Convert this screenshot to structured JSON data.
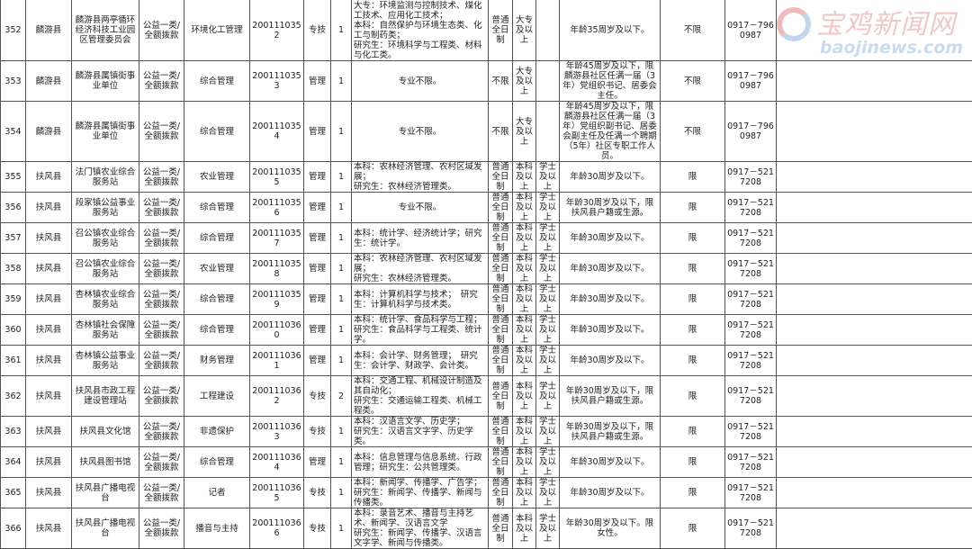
{
  "table": {
    "rows": [
      [
        "352",
        "麟游县",
        "麟游县两亭循环经济科技工业园区管理委员会",
        "公益一类/全额拨款",
        "环境化工管理",
        "2001110352",
        "专技",
        "1",
        "大专：环境监测与控制技术、煤化工技术、应用化工技术；\n本科：自然保护与环境生态类、化工与制药类；\n研究生：环境科学与工程类、材料与化工类。",
        "普通全日制",
        "大专及以上",
        "",
        "年龄35周岁及以下。",
        "不限",
        "0917－7960987",
        ""
      ],
      [
        "353",
        "麟游县",
        "麟游县属镇街事业单位",
        "公益一类/全额拨款",
        "综合管理",
        "2001110353",
        "管理",
        "1",
        "专业不限。",
        "不限",
        "大专及以上",
        "",
        "年龄45周岁及以下，限麟游县社区任满一届（3年）党组织书记、居委会主任。",
        "不限",
        "0917－7960987",
        ""
      ],
      [
        "354",
        "麟游县",
        "麟游县属镇街事业单位",
        "公益一类/全额拨款",
        "综合管理",
        "2001110354",
        "管理",
        "1",
        "专业不限。",
        "不限",
        "大专及以上",
        "",
        "年龄45周岁及以下，限麟游县社区任满一届（3年）党组织副书记、居委会副主任及任满一个聘期（5年）社区专职工作人员。",
        "不限",
        "0917－7960987",
        ""
      ],
      [
        "355",
        "扶风县",
        "法门镇农业综合服务站",
        "公益一类/全额拨款",
        "农业管理",
        "2001110355",
        "管理",
        "1",
        "本科：农林经济管理、农村区域发展；\n研究生：农林经济管理类。",
        "普通全日制",
        "本科及以上",
        "学士及以上",
        "年龄30周岁及以下。",
        "限",
        "0917－5217208",
        ""
      ],
      [
        "356",
        "扶风县",
        "段家镇公益事业服务站",
        "公益一类/全额拨款",
        "综合管理",
        "2001110356",
        "管理",
        "1",
        "专业不限。",
        "普通全日制",
        "本科及以上",
        "学士及以上",
        "年龄30周岁及以下，限扶风县户籍或生源。",
        "限",
        "0917－5217208",
        ""
      ],
      [
        "357",
        "扶风县",
        "召公镇农业综合服务站",
        "公益一类/全额拨款",
        "综合管理",
        "2001110357",
        "管理",
        "1",
        "本科：统计学、经济统计学；研究生：统计学。",
        "普通全日制",
        "本科及以上",
        "学士及以上",
        "年龄30周岁及以下。",
        "限",
        "0917－5217208",
        ""
      ],
      [
        "358",
        "扶风县",
        "召公镇农业综合服务站",
        "公益一类/全额拨款",
        "农业管理",
        "2001110358",
        "管理",
        "1",
        "本科：农林经济管理、农村区域发展；\n研究生：农林经济管理类。",
        "普通全日制",
        "本科及以上",
        "学士及以上",
        "年龄30周岁及以下。",
        "限",
        "0917－5217208",
        ""
      ],
      [
        "359",
        "扶风县",
        "杏林镇农业综合服务站",
        "公益一类/全额拨款",
        "综合管理",
        "2001110359",
        "管理",
        "1",
        "本科：计算机科学与技术；　研究生：计算机科学与技术类。",
        "普通全日制",
        "本科及以上",
        "学士及以上",
        "年龄30周岁及以下。",
        "限",
        "0917－5217208",
        ""
      ],
      [
        "360",
        "扶风县",
        "杏林镇社会保障服务站",
        "公益一类/全额拨款",
        "综合管理",
        "2001110360",
        "管理",
        "1",
        "本科：统计学、食品科学与工程；\n研究生：食品科学与工程类、统计学。",
        "普通全日制",
        "本科及以上",
        "学士及以上",
        "年龄30周岁及以下。",
        "限",
        "0917－5217208",
        ""
      ],
      [
        "361",
        "扶风县",
        "杏林镇公益事业服务站",
        "公益一类/全额拨款",
        "财务管理",
        "2001110361",
        "管理",
        "1",
        "本科：会计学、财务管理；　研究生：会计学、财政学、会计类。",
        "普通全日制",
        "本科及以上",
        "学士及以上",
        "年龄30周岁及以下。",
        "限",
        "0917－5217208",
        ""
      ],
      [
        "362",
        "扶风县",
        "扶风县市政工程建设管理站",
        "公益一类/全额拨款",
        "工程建设",
        "2001110362",
        "专技",
        "2",
        "本科：交通工程、机械设计制造及其自动化；\n研究生：交通运输工程类、机械工程类。",
        "普通全日制",
        "本科及以上",
        "学士及以上",
        "年龄30周岁及以下，限扶风县户籍或生源。",
        "限",
        "0917－5217208",
        ""
      ],
      [
        "363",
        "扶风县",
        "扶风县文化馆",
        "公益一类/全额拨款",
        "非遗保护",
        "2001110363",
        "专技",
        "1",
        "本科：汉语言文学、历史学；\n研究生：汉语言文字学、历史学类。",
        "普通全日制",
        "本科及以上",
        "学士及以上",
        "年龄30周岁及以下，限扶风县户籍或生源。",
        "限",
        "0917－5217208",
        ""
      ],
      [
        "364",
        "扶风县",
        "扶风县图书馆",
        "公益一类/全额拨款",
        "综合管理",
        "2001110364",
        "管理",
        "1",
        "本科：信息管理与信息系统、行政管理；研究生：公共管理类。",
        "普通全日制",
        "本科及以上",
        "学士及以上",
        "年龄30周岁及以下。",
        "限",
        "0917－5217208",
        ""
      ],
      [
        "365",
        "扶风县",
        "扶风县广播电视台",
        "公益一类/全额拨款",
        "记者",
        "2001110365",
        "专技",
        "1",
        "本科：新闻学、传播学、广告学；\n研究生：新闻学、传播学、新闻与传播类。",
        "普通全日制",
        "本科及以上",
        "学士及以上",
        "年龄30周岁及以下。",
        "限",
        "0917－5217208",
        ""
      ],
      [
        "366",
        "扶风县",
        "扶风县广播电视台",
        "公益一类/全额拨款",
        "播音与主持",
        "2001110366",
        "专技",
        "1",
        "本科：录音艺术、播音与主持艺术、新闻学、汉语言文学\n研究生：新闻学、传播学、汉语言文字学、新闻与传播类。",
        "普通全日制",
        "本科及以上",
        "学士及以上",
        "年龄30周岁及以下。限女性。",
        "限",
        "0917－5217208",
        ""
      ]
    ]
  },
  "watermark": {
    "cn": "宝鸡新闻网",
    "en": "baojinews.com"
  },
  "colors": {
    "border": "#555555",
    "watermark_red": "#e49a94",
    "watermark_blue": "#9fbfe3"
  }
}
